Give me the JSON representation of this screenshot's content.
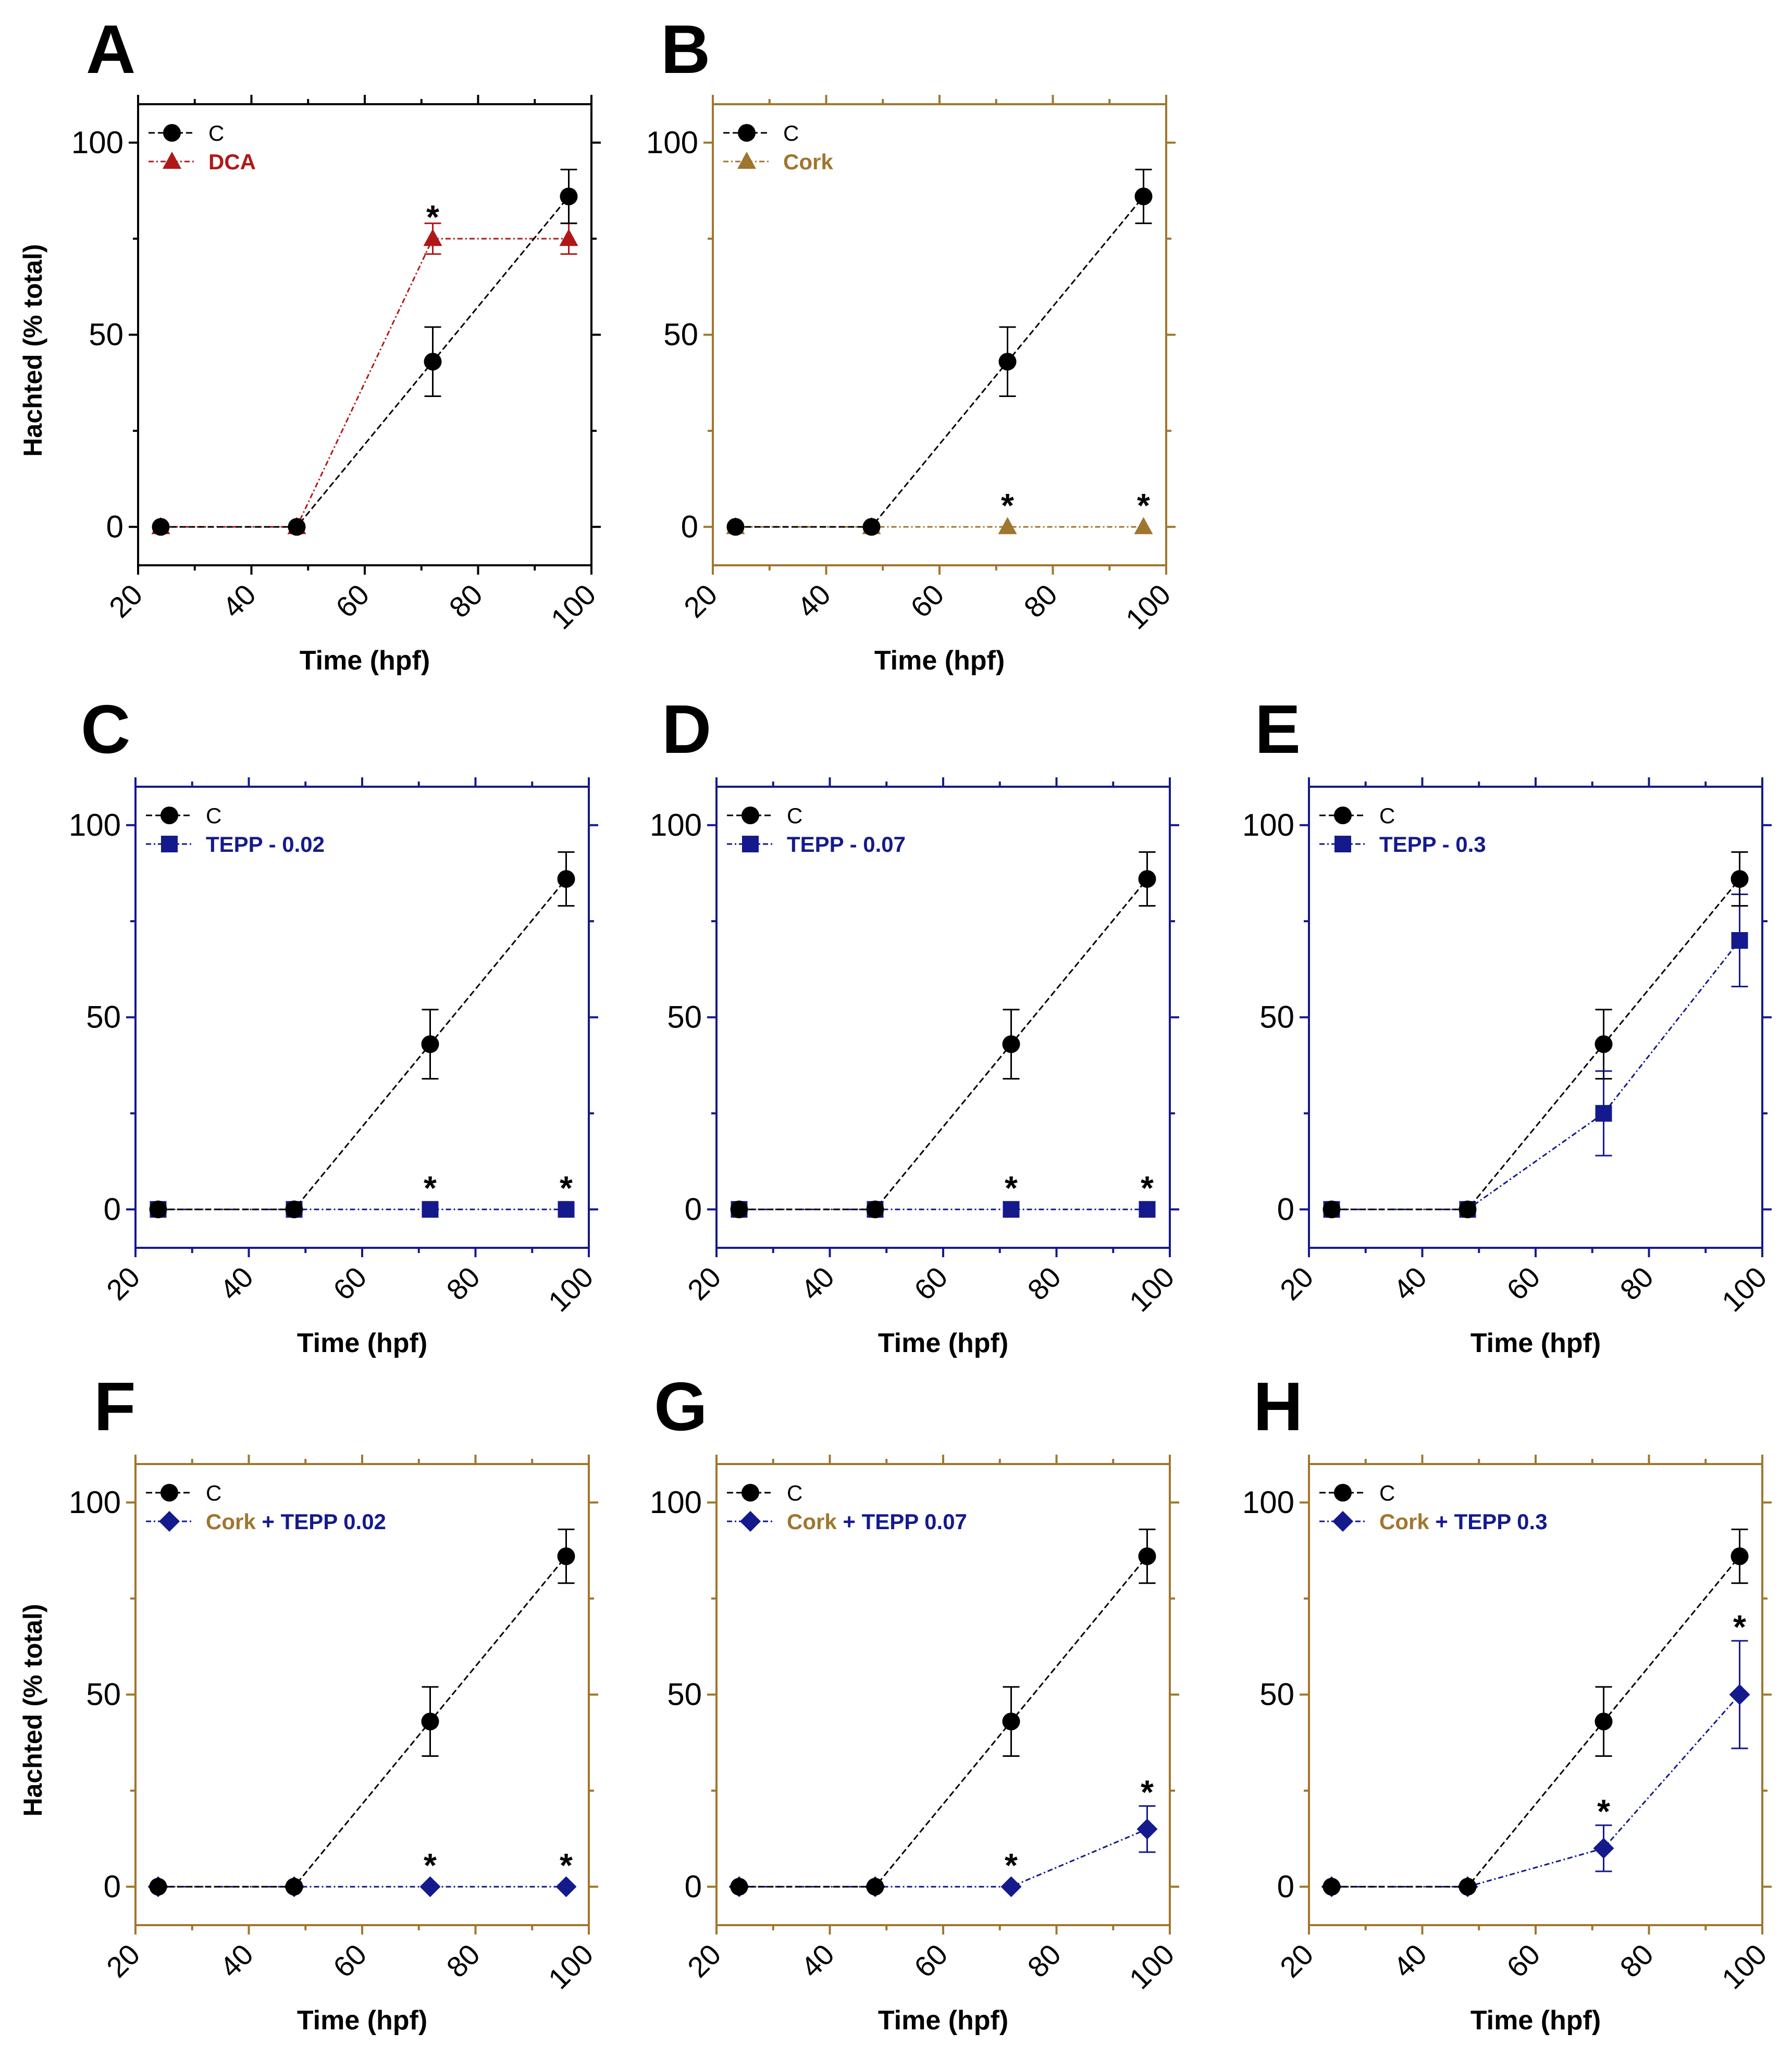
{
  "figure": {
    "x_ticks": [
      20,
      40,
      60,
      80,
      100
    ],
    "y_ticks": [
      0,
      50,
      100
    ],
    "colors": {
      "control": "#000000",
      "dca": "#b01818",
      "cork": "#a0762e",
      "tepp": "#141a8c"
    }
  },
  "chart_data": [
    {
      "panel": "A",
      "type": "line",
      "frame_color": "#000000",
      "xlabel": "Time (hpf)",
      "ylabel": "Hachted (% total)",
      "xlim": [
        20,
        100
      ],
      "ylim": [
        -10,
        110
      ],
      "series": [
        {
          "name": "C",
          "color": "#000000",
          "marker": "circle",
          "x": [
            24,
            48,
            72,
            96
          ],
          "y": [
            0,
            0,
            43,
            86
          ],
          "err": [
            0,
            0,
            9,
            7
          ]
        },
        {
          "name": "DCA",
          "color": "#b01818",
          "marker": "triangle",
          "x": [
            24,
            48,
            72,
            96
          ],
          "y": [
            0,
            0,
            75,
            75
          ],
          "err": [
            0,
            0,
            4,
            4
          ]
        }
      ],
      "legend_lines": [
        [
          {
            "text": "C",
            "color": "#000000"
          }
        ],
        [
          {
            "text": "DCA",
            "color": "#b01818"
          }
        ]
      ],
      "annotations": [
        {
          "x": 72,
          "y": 79,
          "text": "*"
        }
      ]
    },
    {
      "panel": "B",
      "type": "line",
      "frame_color": "#a0762e",
      "xlabel": "Time (hpf)",
      "ylabel": "",
      "xlim": [
        20,
        100
      ],
      "ylim": [
        -10,
        110
      ],
      "series": [
        {
          "name": "C",
          "color": "#000000",
          "marker": "circle",
          "x": [
            24,
            48,
            72,
            96
          ],
          "y": [
            0,
            0,
            43,
            86
          ],
          "err": [
            0,
            0,
            9,
            7
          ]
        },
        {
          "name": "Cork",
          "color": "#a0762e",
          "marker": "triangle",
          "x": [
            24,
            48,
            72,
            96
          ],
          "y": [
            0,
            0,
            0,
            0
          ],
          "err": [
            0,
            0,
            0,
            0
          ]
        }
      ],
      "legend_lines": [
        [
          {
            "text": "C",
            "color": "#000000"
          }
        ],
        [
          {
            "text": "Cork",
            "color": "#a0762e"
          }
        ]
      ],
      "annotations": [
        {
          "x": 72,
          "y": 4,
          "text": "*"
        },
        {
          "x": 96,
          "y": 4,
          "text": "*"
        }
      ]
    },
    {
      "panel": "C",
      "type": "line",
      "frame_color": "#141a8c",
      "xlabel": "Time (hpf)",
      "ylabel": "",
      "xlim": [
        20,
        100
      ],
      "ylim": [
        -10,
        110
      ],
      "series": [
        {
          "name": "C",
          "color": "#000000",
          "marker": "circle",
          "x": [
            24,
            48,
            72,
            96
          ],
          "y": [
            0,
            0,
            43,
            86
          ],
          "err": [
            0,
            0,
            9,
            7
          ]
        },
        {
          "name": "TEPP - 0.02",
          "color": "#141a8c",
          "marker": "square",
          "x": [
            24,
            48,
            72,
            96
          ],
          "y": [
            0,
            0,
            0,
            0
          ],
          "err": [
            0,
            0,
            0,
            0
          ]
        }
      ],
      "legend_lines": [
        [
          {
            "text": "C",
            "color": "#000000"
          }
        ],
        [
          {
            "text": "TEPP - 0.02",
            "color": "#141a8c"
          }
        ]
      ],
      "annotations": [
        {
          "x": 72,
          "y": 4,
          "text": "*"
        },
        {
          "x": 96,
          "y": 4,
          "text": "*"
        }
      ]
    },
    {
      "panel": "D",
      "type": "line",
      "frame_color": "#141a8c",
      "xlabel": "Time (hpf)",
      "ylabel": "",
      "xlim": [
        20,
        100
      ],
      "ylim": [
        -10,
        110
      ],
      "series": [
        {
          "name": "C",
          "color": "#000000",
          "marker": "circle",
          "x": [
            24,
            48,
            72,
            96
          ],
          "y": [
            0,
            0,
            43,
            86
          ],
          "err": [
            0,
            0,
            9,
            7
          ]
        },
        {
          "name": "TEPP - 0.07",
          "color": "#141a8c",
          "marker": "square",
          "x": [
            24,
            48,
            72,
            96
          ],
          "y": [
            0,
            0,
            0,
            0
          ],
          "err": [
            0,
            0,
            0,
            0
          ]
        }
      ],
      "legend_lines": [
        [
          {
            "text": "C",
            "color": "#000000"
          }
        ],
        [
          {
            "text": "TEPP - 0.07",
            "color": "#141a8c"
          }
        ]
      ],
      "annotations": [
        {
          "x": 72,
          "y": 4,
          "text": "*"
        },
        {
          "x": 96,
          "y": 4,
          "text": "*"
        }
      ]
    },
    {
      "panel": "E",
      "type": "line",
      "frame_color": "#141a8c",
      "xlabel": "Time (hpf)",
      "ylabel": "",
      "xlim": [
        20,
        100
      ],
      "ylim": [
        -10,
        110
      ],
      "series": [
        {
          "name": "C",
          "color": "#000000",
          "marker": "circle",
          "x": [
            24,
            48,
            72,
            96
          ],
          "y": [
            0,
            0,
            43,
            86
          ],
          "err": [
            0,
            0,
            9,
            7
          ]
        },
        {
          "name": "TEPP - 0.3",
          "color": "#141a8c",
          "marker": "square",
          "x": [
            24,
            48,
            72,
            96
          ],
          "y": [
            0,
            0,
            25,
            70
          ],
          "err": [
            0,
            0,
            11,
            12
          ]
        }
      ],
      "legend_lines": [
        [
          {
            "text": "C",
            "color": "#000000"
          }
        ],
        [
          {
            "text": "TEPP - 0.3",
            "color": "#141a8c"
          }
        ]
      ],
      "annotations": []
    },
    {
      "panel": "F",
      "type": "line",
      "frame_color": "#a0762e",
      "xlabel": "Time (hpf)",
      "ylabel": "Hachted (% total)",
      "xlim": [
        20,
        100
      ],
      "ylim": [
        -10,
        110
      ],
      "series": [
        {
          "name": "C",
          "color": "#000000",
          "marker": "circle",
          "x": [
            24,
            48,
            72,
            96
          ],
          "y": [
            0,
            0,
            43,
            86
          ],
          "err": [
            0,
            0,
            9,
            7
          ]
        },
        {
          "name": "Cork + TEPP 0.02",
          "color": "#141a8c",
          "marker": "diamond",
          "x": [
            24,
            48,
            72,
            96
          ],
          "y": [
            0,
            0,
            0,
            0
          ],
          "err": [
            0,
            0,
            0,
            0
          ]
        }
      ],
      "legend_lines": [
        [
          {
            "text": "C",
            "color": "#000000"
          }
        ],
        [
          {
            "text": "Cork",
            "color": "#a0762e"
          },
          {
            "text": " + TEPP 0.02",
            "color": "#141a8c"
          }
        ]
      ],
      "annotations": [
        {
          "x": 72,
          "y": 4,
          "text": "*"
        },
        {
          "x": 96,
          "y": 4,
          "text": "*"
        }
      ]
    },
    {
      "panel": "G",
      "type": "line",
      "frame_color": "#a0762e",
      "xlabel": "Time (hpf)",
      "ylabel": "",
      "xlim": [
        20,
        100
      ],
      "ylim": [
        -10,
        110
      ],
      "series": [
        {
          "name": "C",
          "color": "#000000",
          "marker": "circle",
          "x": [
            24,
            48,
            72,
            96
          ],
          "y": [
            0,
            0,
            43,
            86
          ],
          "err": [
            0,
            0,
            9,
            7
          ]
        },
        {
          "name": "Cork + TEPP 0.07",
          "color": "#141a8c",
          "marker": "diamond",
          "x": [
            24,
            48,
            72,
            96
          ],
          "y": [
            0,
            0,
            0,
            15
          ],
          "err": [
            0,
            0,
            0,
            6
          ]
        }
      ],
      "legend_lines": [
        [
          {
            "text": "C",
            "color": "#000000"
          }
        ],
        [
          {
            "text": "Cork",
            "color": "#a0762e"
          },
          {
            "text": " + TEPP 0.07",
            "color": "#141a8c"
          }
        ]
      ],
      "annotations": [
        {
          "x": 72,
          "y": 4,
          "text": "*"
        },
        {
          "x": 96,
          "y": 23,
          "text": "*"
        }
      ]
    },
    {
      "panel": "H",
      "type": "line",
      "frame_color": "#a0762e",
      "xlabel": "Time (hpf)",
      "ylabel": "",
      "xlim": [
        20,
        100
      ],
      "ylim": [
        -10,
        110
      ],
      "series": [
        {
          "name": "C",
          "color": "#000000",
          "marker": "circle",
          "x": [
            24,
            48,
            72,
            96
          ],
          "y": [
            0,
            0,
            43,
            86
          ],
          "err": [
            0,
            0,
            9,
            7
          ]
        },
        {
          "name": "Cork + TEPP 0.3",
          "color": "#141a8c",
          "marker": "diamond",
          "x": [
            24,
            48,
            72,
            96
          ],
          "y": [
            0,
            0,
            10,
            50
          ],
          "err": [
            0,
            0,
            6,
            14
          ]
        }
      ],
      "legend_lines": [
        [
          {
            "text": "C",
            "color": "#000000"
          }
        ],
        [
          {
            "text": "Cork",
            "color": "#a0762e"
          },
          {
            "text": " + TEPP 0.3",
            "color": "#141a8c"
          }
        ]
      ],
      "annotations": [
        {
          "x": 72,
          "y": 18,
          "text": "*"
        },
        {
          "x": 96,
          "y": 66,
          "text": "*"
        }
      ]
    }
  ]
}
